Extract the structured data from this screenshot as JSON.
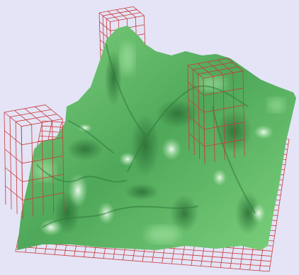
{
  "scene": {
    "background_color": "#e4e4f6",
    "terrain_colors": {
      "dark": "#2e7a3a",
      "mid": "#5fbf68",
      "light": "#a8e6a8",
      "highlight": "#f2fbf2"
    },
    "grid_color": "#c83a3a",
    "wireframe_boxes": [
      "box-top-center",
      "box-right",
      "box-left"
    ]
  }
}
